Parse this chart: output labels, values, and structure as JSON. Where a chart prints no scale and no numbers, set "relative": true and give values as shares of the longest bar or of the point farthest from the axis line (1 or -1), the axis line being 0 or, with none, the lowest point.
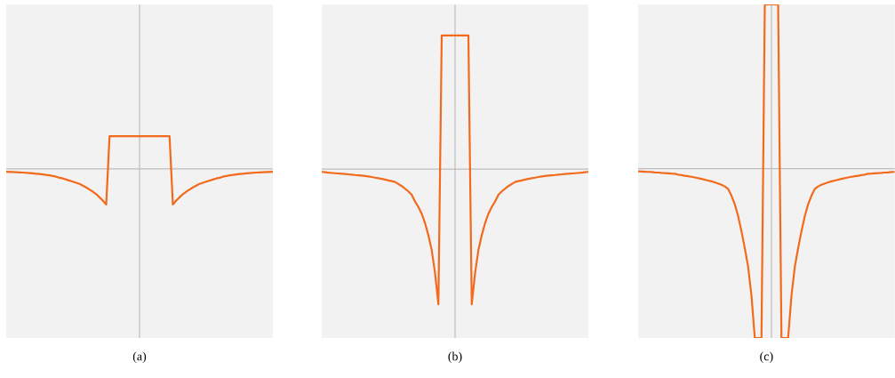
{
  "chart_data": [
    {
      "type": "line",
      "relative": true,
      "xlabel": "(a)",
      "color": "#f26b1d",
      "ylim": [
        -4.75,
        4.62
      ],
      "categories": [
        null,
        null,
        null,
        null,
        null,
        null,
        null,
        null,
        null,
        null,
        null,
        null,
        null,
        null,
        null,
        null,
        null,
        null,
        null,
        null,
        null,
        null,
        null,
        null,
        null,
        null,
        null,
        null,
        null,
        null,
        null,
        null,
        null,
        null,
        null,
        null,
        null,
        null,
        null,
        null,
        null,
        null,
        null,
        null,
        null,
        null,
        null,
        null,
        null,
        null,
        null,
        null,
        null,
        null,
        null,
        null,
        null,
        null,
        null,
        null,
        null,
        null,
        null,
        null,
        null,
        null,
        null,
        null,
        null,
        null,
        null,
        null,
        null,
        null,
        null,
        null,
        null,
        null,
        null,
        null,
        null
      ],
      "values": [
        -0.08,
        -0.084,
        -0.088,
        -0.092,
        -0.097,
        -0.103,
        -0.11,
        -0.117,
        -0.125,
        -0.135,
        -0.145,
        -0.155,
        -0.17,
        -0.18,
        -0.2,
        -0.22,
        -0.25,
        -0.27,
        -0.3,
        -0.33,
        -0.36,
        -0.39,
        -0.42,
        -0.47,
        -0.52,
        -0.58,
        -0.64,
        -0.71,
        -0.8,
        -0.89,
        -1,
        0.92,
        0.92,
        0.92,
        0.92,
        0.92,
        0.92,
        0.92,
        0.92,
        0.92,
        0.92,
        0.92,
        0.92,
        0.92,
        0.92,
        0.92,
        0.92,
        0.92,
        0.92,
        0.92,
        -1,
        -0.89,
        -0.8,
        -0.71,
        -0.64,
        -0.58,
        -0.52,
        -0.47,
        -0.42,
        -0.39,
        -0.36,
        -0.33,
        -0.3,
        -0.27,
        -0.25,
        -0.22,
        -0.2,
        -0.18,
        -0.17,
        -0.155,
        -0.145,
        -0.135,
        -0.125,
        -0.117,
        -0.11,
        -0.103,
        -0.097,
        -0.092,
        -0.088,
        -0.084,
        -0.08
      ]
    },
    {
      "type": "line",
      "relative": true,
      "xlabel": "(b)",
      "color": "#f26b1d",
      "ylim": [
        -1.25,
        1.22
      ],
      "categories": [
        null,
        null,
        null,
        null,
        null,
        null,
        null,
        null,
        null,
        null,
        null,
        null,
        null,
        null,
        null,
        null,
        null,
        null,
        null,
        null,
        null,
        null,
        null,
        null,
        null,
        null,
        null,
        null,
        null,
        null,
        null,
        null,
        null,
        null,
        null,
        null,
        null,
        null,
        null,
        null,
        null,
        null,
        null,
        null,
        null,
        null,
        null,
        null,
        null,
        null,
        null,
        null,
        null,
        null,
        null,
        null,
        null,
        null,
        null,
        null,
        null,
        null,
        null,
        null,
        null,
        null,
        null,
        null,
        null,
        null,
        null,
        null,
        null,
        null,
        null,
        null,
        null,
        null,
        null,
        null,
        null
      ],
      "values": [
        -0.02,
        -0.023,
        -0.026,
        -0.028,
        -0.03,
        -0.032,
        -0.034,
        -0.036,
        -0.038,
        -0.04,
        -0.043,
        -0.045,
        -0.047,
        -0.05,
        -0.054,
        -0.058,
        -0.063,
        -0.067,
        -0.072,
        -0.077,
        -0.083,
        -0.088,
        -0.095,
        -0.11,
        -0.125,
        -0.145,
        -0.165,
        -0.19,
        -0.24,
        -0.28,
        -0.33,
        -0.4,
        -0.49,
        -0.6,
        -0.77,
        -1,
        0.99,
        0.99,
        0.99,
        0.99,
        0.99,
        0.99,
        0.99,
        0.99,
        0.99,
        -1,
        -0.77,
        -0.6,
        -0.49,
        -0.4,
        -0.33,
        -0.28,
        -0.24,
        -0.19,
        -0.165,
        -0.145,
        -0.125,
        -0.11,
        -0.095,
        -0.088,
        -0.083,
        -0.077,
        -0.072,
        -0.067,
        -0.063,
        -0.058,
        -0.054,
        -0.05,
        -0.047,
        -0.045,
        -0.043,
        -0.04,
        -0.038,
        -0.036,
        -0.034,
        -0.032,
        -0.03,
        -0.028,
        -0.026,
        -0.023,
        -0.02
      ]
    },
    {
      "type": "line",
      "relative": true,
      "xlabel": "(c)",
      "color": "#f26b1d",
      "ylim": [
        -1,
        0.97
      ],
      "categories": [
        null,
        null,
        null,
        null,
        null,
        null,
        null,
        null,
        null,
        null,
        null,
        null,
        null,
        null,
        null,
        null,
        null,
        null,
        null,
        null,
        null,
        null,
        null,
        null,
        null,
        null,
        null,
        null,
        null,
        null,
        null,
        null,
        null,
        null,
        null,
        null,
        null,
        null,
        null,
        null,
        null,
        null,
        null,
        null,
        null,
        null,
        null,
        null,
        null,
        null,
        null,
        null,
        null,
        null,
        null,
        null,
        null,
        null,
        null,
        null,
        null,
        null,
        null,
        null,
        null,
        null,
        null,
        null,
        null,
        null,
        null,
        null,
        null,
        null,
        null,
        null,
        null,
        null
      ],
      "values": [
        -0.016,
        -0.017,
        -0.018,
        -0.019,
        -0.02,
        -0.022,
        -0.023,
        -0.025,
        -0.026,
        -0.027,
        -0.029,
        -0.03,
        -0.035,
        -0.038,
        -0.042,
        -0.045,
        -0.048,
        -0.052,
        -0.056,
        -0.06,
        -0.065,
        -0.07,
        -0.075,
        -0.081,
        -0.088,
        -0.095,
        -0.105,
        -0.12,
        -0.16,
        -0.21,
        -0.28,
        -0.37,
        -0.47,
        -0.58,
        -0.75,
        -1,
        -1,
        -1,
        0.97,
        0.97,
        0.97,
        0.97,
        0.97,
        -1,
        -1,
        -1,
        -0.75,
        -0.58,
        -0.47,
        -0.37,
        -0.28,
        -0.21,
        -0.16,
        -0.12,
        -0.105,
        -0.095,
        -0.088,
        -0.081,
        -0.075,
        -0.07,
        -0.065,
        -0.06,
        -0.056,
        -0.052,
        -0.048,
        -0.045,
        -0.042,
        -0.038,
        -0.035,
        -0.03,
        -0.029,
        -0.027,
        -0.026,
        -0.025,
        -0.023,
        -0.022,
        -0.02,
        -0.019
      ]
    }
  ]
}
